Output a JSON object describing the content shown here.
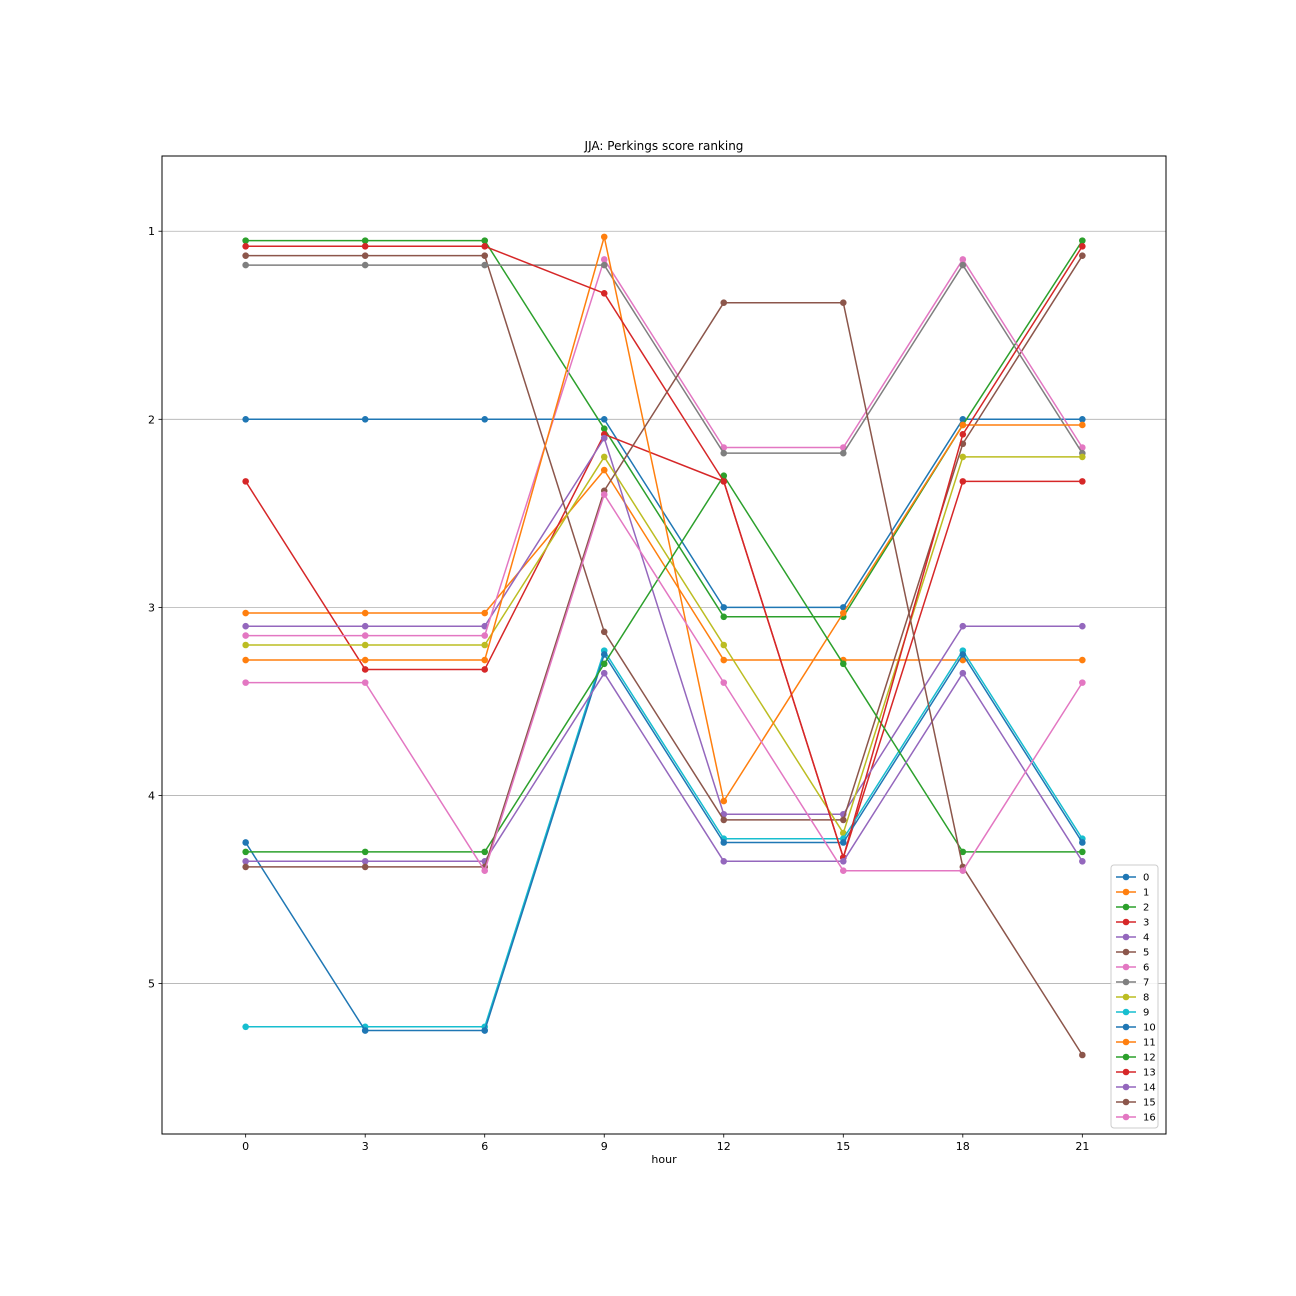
{
  "chart_data": {
    "type": "line",
    "title": "JJA: Perkings score ranking",
    "xlabel": "hour",
    "ylabel": "",
    "x": [
      0,
      3,
      6,
      9,
      12,
      15,
      18,
      21
    ],
    "xticks": [
      "0",
      "3",
      "6",
      "9",
      "12",
      "15",
      "18",
      "21"
    ],
    "yticks": [
      "1",
      "2",
      "3",
      "4",
      "5"
    ],
    "xlim": [
      -2.1,
      23.1
    ],
    "ylim": [
      5.8,
      0.6
    ],
    "y_inverted": true,
    "grid": "horizontal",
    "legend_position": "lower-right",
    "marker": "circle",
    "series": [
      {
        "name": "0",
        "color": "#1f77b4",
        "values": [
          2.0,
          2.0,
          2.0,
          2.0,
          3.0,
          3.0,
          2.0,
          2.0
        ]
      },
      {
        "name": "1",
        "color": "#ff7f0e",
        "values": [
          3.03,
          3.03,
          3.03,
          2.27,
          3.28,
          3.28,
          3.28,
          3.28
        ]
      },
      {
        "name": "2",
        "color": "#2ca02c",
        "values": [
          1.05,
          1.05,
          1.05,
          2.05,
          3.05,
          3.05,
          2.03,
          1.05
        ]
      },
      {
        "name": "3",
        "color": "#d62728",
        "values": [
          2.33,
          3.33,
          3.33,
          2.08,
          2.33,
          4.33,
          2.33,
          2.33
        ]
      },
      {
        "name": "4",
        "color": "#9467bd",
        "values": [
          3.1,
          3.1,
          3.1,
          2.1,
          4.1,
          4.1,
          3.1,
          3.1
        ]
      },
      {
        "name": "5",
        "color": "#8c564b",
        "values": [
          1.13,
          1.13,
          1.13,
          3.13,
          4.13,
          4.13,
          2.13,
          1.13
        ]
      },
      {
        "name": "6",
        "color": "#e377c2",
        "values": [
          3.15,
          3.15,
          3.15,
          1.15,
          2.15,
          2.15,
          1.15,
          2.15
        ]
      },
      {
        "name": "7",
        "color": "#7f7f7f",
        "values": [
          1.18,
          1.18,
          1.18,
          1.18,
          2.18,
          2.18,
          1.18,
          2.18
        ]
      },
      {
        "name": "8",
        "color": "#bcbd22",
        "values": [
          3.2,
          3.2,
          3.2,
          2.2,
          3.2,
          4.2,
          2.2,
          2.2
        ]
      },
      {
        "name": "9",
        "color": "#17becf",
        "values": [
          5.23,
          5.23,
          5.23,
          3.23,
          4.23,
          4.23,
          3.23,
          4.23
        ]
      },
      {
        "name": "10",
        "color": "#1f77b4",
        "values": [
          4.25,
          5.25,
          5.25,
          3.25,
          4.25,
          4.25,
          3.25,
          4.25
        ]
      },
      {
        "name": "11",
        "color": "#ff7f0e",
        "values": [
          3.28,
          3.28,
          3.28,
          1.03,
          4.03,
          3.03,
          2.03,
          2.03
        ]
      },
      {
        "name": "12",
        "color": "#2ca02c",
        "values": [
          4.3,
          4.3,
          4.3,
          3.3,
          2.3,
          3.3,
          4.3,
          4.3
        ]
      },
      {
        "name": "13",
        "color": "#d62728",
        "values": [
          1.08,
          1.08,
          1.08,
          1.33,
          2.33,
          4.33,
          2.08,
          1.08
        ]
      },
      {
        "name": "14",
        "color": "#9467bd",
        "values": [
          4.35,
          4.35,
          4.35,
          3.35,
          4.35,
          4.35,
          3.35,
          4.35
        ]
      },
      {
        "name": "15",
        "color": "#8c564b",
        "values": [
          4.38,
          4.38,
          4.38,
          2.38,
          1.38,
          1.38,
          4.38,
          5.38
        ]
      },
      {
        "name": "16",
        "color": "#e377c2",
        "values": [
          3.4,
          3.4,
          4.4,
          2.4,
          3.4,
          4.4,
          4.4,
          3.4
        ]
      }
    ]
  }
}
